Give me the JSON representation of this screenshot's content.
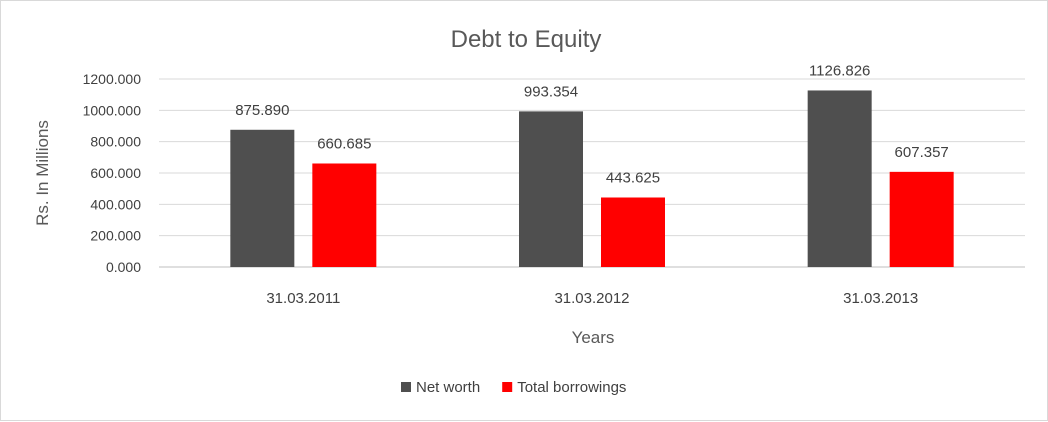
{
  "chart_data": {
    "type": "bar",
    "title": "Debt to Equity",
    "xlabel": "Years",
    "ylabel": "Rs. In Millions",
    "categories": [
      "31.03.2011",
      "31.03.2012",
      "31.03.2013"
    ],
    "series": [
      {
        "name": "Net worth",
        "values": [
          875.89,
          993.354,
          1126.826
        ],
        "labels": [
          "875.890",
          "993.354",
          "1126.826"
        ],
        "color": "#4f4f4f"
      },
      {
        "name": "Total borrowings",
        "values": [
          660.685,
          443.625,
          607.357
        ],
        "labels": [
          "660.685",
          "443.625",
          "607.357"
        ],
        "color": "#ff0000"
      }
    ],
    "ylim": [
      0,
      1200
    ],
    "yticks": [
      "0.000",
      "200.000",
      "400.000",
      "600.000",
      "800.000",
      "1000.000",
      "1200.000"
    ],
    "grid": true,
    "legend": "bottom"
  }
}
